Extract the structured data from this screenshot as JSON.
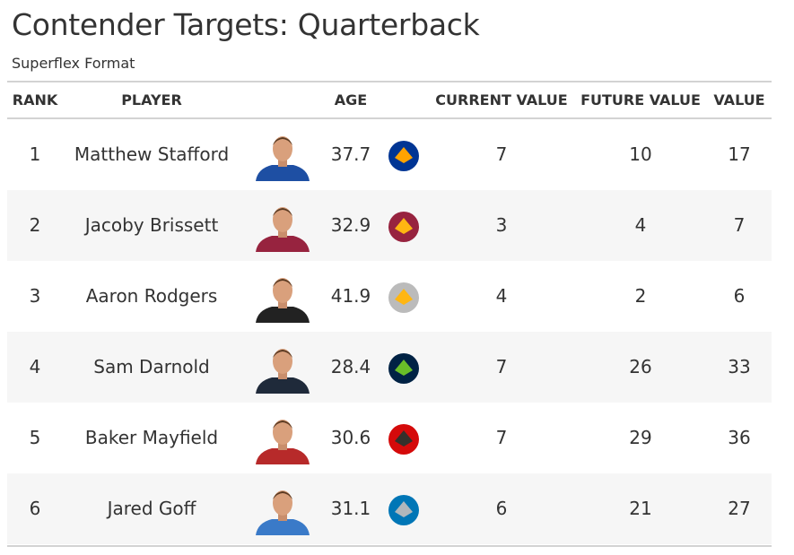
{
  "header": {
    "title": "Contender Targets: Quarterback",
    "subtitle": "Superflex Format"
  },
  "table": {
    "columns": [
      "RANK",
      "PLAYER",
      "AGE",
      "CURRENT VALUE",
      "FUTURE VALUE",
      "VALUE"
    ],
    "rows": [
      [
        1,
        "Matthew Stafford",
        37.7,
        7,
        10,
        17
      ],
      [
        2,
        "Jacoby Brissett",
        32.9,
        3,
        4,
        7
      ],
      [
        3,
        "Aaron Rodgers",
        41.9,
        4,
        2,
        6
      ],
      [
        4,
        "Sam Darnold",
        28.4,
        7,
        26,
        33
      ],
      [
        5,
        "Baker Mayfield",
        30.6,
        7,
        29,
        36
      ],
      [
        6,
        "Jared Goff",
        31.1,
        6,
        21,
        27
      ]
    ]
  }
}
